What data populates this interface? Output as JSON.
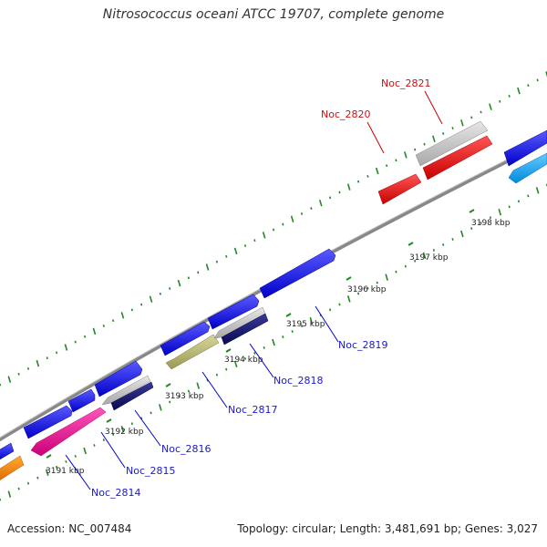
{
  "header": {
    "title": "Nitrosococcus oceani ATCC 19707, complete genome"
  },
  "footer": {
    "accession": "Accession: NC_007484",
    "summary": "Topology: circular; Length: 3,481,691 bp; Genes: 3,027"
  },
  "map": {
    "ticks": [
      "3191 kbp",
      "3192 kbp",
      "3193 kbp",
      "3194 kbp",
      "3195 kbp",
      "3196 kbp",
      "3197 kbp",
      "3198 kbp"
    ],
    "genes": [
      {
        "label": "Noc_2814",
        "color": "#1a1acc"
      },
      {
        "label": "Noc_2815",
        "color": "#1a1acc"
      },
      {
        "label": "Noc_2816",
        "color": "#1a1acc"
      },
      {
        "label": "Noc_2817",
        "color": "#1a1acc"
      },
      {
        "label": "Noc_2818",
        "color": "#1a1acc"
      },
      {
        "label": "Noc_2819",
        "color": "#1a1acc"
      },
      {
        "label": "Noc_2820",
        "color": "#cc1111"
      },
      {
        "label": "Noc_2821",
        "color": "#cc1111"
      }
    ],
    "colors": {
      "backbone": "#888888",
      "gc_dots": "#228822",
      "blue": "#1010ee",
      "navy": "#101070",
      "gray": "#c8c8c8",
      "red": "#ee1111",
      "pink": "#ee2299",
      "olive": "#b8b870",
      "orange": "#ff8800",
      "cyan": "#22aaee"
    }
  }
}
